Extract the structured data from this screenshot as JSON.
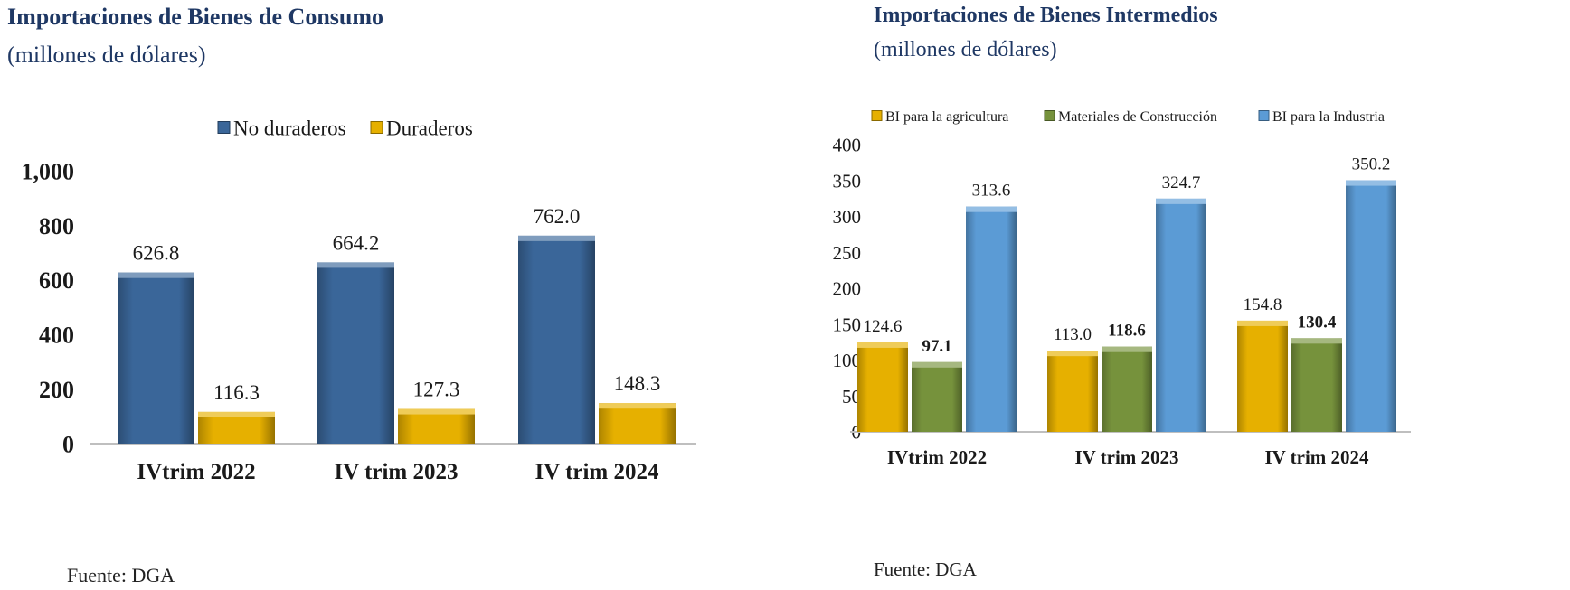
{
  "charts": [
    {
      "title": "Importaciones de Bienes de Consumo",
      "subtitle": "(millones de dólares)",
      "source": "Fuente: DGA",
      "chart_data": {
        "type": "bar",
        "categories": [
          "IVtrim 2022",
          "IV trim 2023",
          "IV trim 2024"
        ],
        "series": [
          {
            "name": "No duraderos",
            "values": [
              626.8,
              664.2,
              762.0
            ],
            "labels": [
              "626.8",
              "664.2",
              "762.0"
            ],
            "color": "#3a6699"
          },
          {
            "name": "Duraderos",
            "values": [
              116.3,
              127.3,
              148.3
            ],
            "labels": [
              "116.3",
              "127.3",
              "148.3"
            ],
            "color": "#e6b000"
          }
        ],
        "ylim": [
          0,
          1000
        ],
        "yticks": [
          "0",
          "200",
          "400",
          "600",
          "800",
          "1,000"
        ],
        "grid": false,
        "legend": "top"
      }
    },
    {
      "title": "Importaciones de Bienes Intermedios",
      "subtitle": "(millones de dólares)",
      "source": "Fuente: DGA",
      "chart_data": {
        "type": "bar",
        "categories": [
          "IVtrim 2022",
          "IV trim 2023",
          "IV trim 2024"
        ],
        "series": [
          {
            "name": "BI para la agricultura",
            "values": [
              124.6,
              113.0,
              154.8
            ],
            "labels": [
              "124.6",
              "113.0",
              "154.8"
            ],
            "color": "#e6b000"
          },
          {
            "name": "Materiales de Construcción",
            "values": [
              97.1,
              118.6,
              130.4
            ],
            "labels": [
              "97.1",
              "118.6",
              "130.4"
            ],
            "color": "#76923c"
          },
          {
            "name": "BI para la Industria",
            "values": [
              313.6,
              324.7,
              350.2
            ],
            "labels": [
              "313.6",
              "324.7",
              "350.2"
            ],
            "color": "#5b9bd5"
          }
        ],
        "ylim": [
          0,
          400
        ],
        "yticks": [
          "0",
          "50",
          "100",
          "150",
          "200",
          "250",
          "300",
          "350",
          "400"
        ],
        "grid": false,
        "legend": "top"
      }
    }
  ]
}
